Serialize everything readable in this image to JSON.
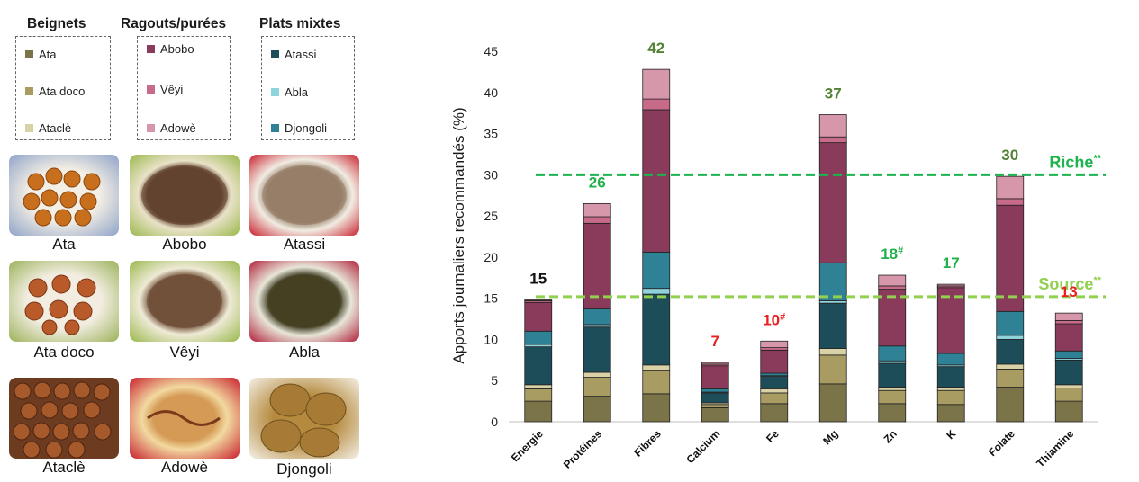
{
  "legend_groups": [
    {
      "title": "Beignets",
      "items": [
        {
          "label": "Ata",
          "color": "#7a7448"
        },
        {
          "label": "Ata doco",
          "color": "#a89c63"
        },
        {
          "label": "Ataclè",
          "color": "#d9d2a6"
        }
      ]
    },
    {
      "title": "Ragouts/purées",
      "items": [
        {
          "label": "Abobo",
          "color": "#8a3a5a"
        },
        {
          "label": "Vêyi",
          "color": "#c86a8a"
        },
        {
          "label": "Adowè",
          "color": "#d797aa"
        }
      ]
    },
    {
      "title": "Plats mixtes",
      "items": [
        {
          "label": "Atassi",
          "color": "#1e4d5a"
        },
        {
          "label": "Abla",
          "color": "#8fd3dd"
        },
        {
          "label": "Djongoli",
          "color": "#2f8196"
        }
      ]
    }
  ],
  "food_photos": [
    {
      "label": "Ata",
      "kind": "fritters-photo"
    },
    {
      "label": "Abobo",
      "kind": "beans-stew-photo"
    },
    {
      "label": "Atassi",
      "kind": "rice-beans-photo"
    },
    {
      "label": "Ata doco",
      "kind": "fritters-photo"
    },
    {
      "label": "Vêyi",
      "kind": "beans-stew-photo"
    },
    {
      "label": "Abla",
      "kind": "green-stew-photo"
    },
    {
      "label": "Ataclè",
      "kind": "chestnut-fritters-photo"
    },
    {
      "label": "Adowè",
      "kind": "puree-photo"
    },
    {
      "label": "Djongoli",
      "kind": "cakes-photo"
    }
  ],
  "chart_data": {
    "type": "bar",
    "stacked": true,
    "ylabel": "Apports journaliers recommandés (%)",
    "xlabel": "",
    "ylim": [
      0,
      45
    ],
    "yticks": [
      0,
      5,
      10,
      15,
      20,
      25,
      30,
      35,
      40,
      45
    ],
    "categories": [
      "Energie",
      "Protéines",
      "Fibres",
      "Calcium",
      "Fe",
      "Mg",
      "Zn",
      "K",
      "Folate",
      "Thiamine"
    ],
    "series": [
      {
        "name": "Ata",
        "color": "#7a7448",
        "values": [
          2.5,
          3.1,
          3.4,
          1.7,
          2.2,
          4.6,
          2.2,
          2.1,
          4.2,
          2.5
        ]
      },
      {
        "name": "Ata doco",
        "color": "#a89c63",
        "values": [
          1.5,
          2.3,
          2.8,
          0.4,
          1.3,
          3.5,
          1.6,
          1.7,
          2.2,
          1.6
        ]
      },
      {
        "name": "Ataclè",
        "color": "#d9d2a6",
        "values": [
          0.5,
          0.6,
          0.7,
          0.2,
          0.5,
          0.8,
          0.4,
          0.4,
          0.6,
          0.4
        ]
      },
      {
        "name": "Atassi",
        "color": "#1e4d5a",
        "values": [
          4.6,
          5.5,
          8.6,
          1.2,
          1.5,
          5.5,
          2.9,
          2.5,
          3.0,
          3.0
        ]
      },
      {
        "name": "Abla",
        "color": "#8fd3dd",
        "values": [
          0.3,
          0.3,
          0.7,
          0.1,
          0.1,
          0.3,
          0.3,
          0.2,
          0.5,
          0.2
        ]
      },
      {
        "name": "Djongoli",
        "color": "#2f8196",
        "values": [
          1.6,
          1.9,
          4.4,
          0.4,
          0.3,
          4.6,
          1.8,
          1.4,
          2.9,
          0.9
        ]
      },
      {
        "name": "Abobo",
        "color": "#8a3a5a",
        "values": [
          3.5,
          10.4,
          17.3,
          2.8,
          2.8,
          14.6,
          6.9,
          8.0,
          12.9,
          3.3
        ]
      },
      {
        "name": "Vêyi",
        "color": "#c86a8a",
        "values": [
          0.2,
          0.8,
          1.3,
          0.2,
          0.3,
          0.7,
          0.4,
          0.2,
          0.8,
          0.4
        ]
      },
      {
        "name": "Adowè",
        "color": "#d797aa",
        "values": [
          0.1,
          1.6,
          3.6,
          0.2,
          0.8,
          2.7,
          1.3,
          0.2,
          2.7,
          0.9
        ]
      }
    ],
    "top_labels": [
      {
        "text": "15",
        "sup": "",
        "color": "#111111"
      },
      {
        "text": "26",
        "sup": "",
        "color": "#22b04b"
      },
      {
        "text": "42",
        "sup": "",
        "color": "#548235"
      },
      {
        "text": "7",
        "sup": "",
        "color": "#e82020"
      },
      {
        "text": "10",
        "sup": "#",
        "color": "#e82020"
      },
      {
        "text": "37",
        "sup": "",
        "color": "#548235"
      },
      {
        "text": "18",
        "sup": "#",
        "color": "#22b04b"
      },
      {
        "text": "17",
        "sup": "",
        "color": "#22b04b"
      },
      {
        "text": "30",
        "sup": "",
        "color": "#548235"
      },
      {
        "text": "13",
        "sup": "",
        "color": "#e82020"
      }
    ],
    "reference_lines": [
      {
        "label": "Riche",
        "sup": "**",
        "y": 30,
        "color": "#1db450"
      },
      {
        "label": "Source",
        "sup": "**",
        "y": 15.2,
        "color": "#92d050"
      }
    ]
  }
}
